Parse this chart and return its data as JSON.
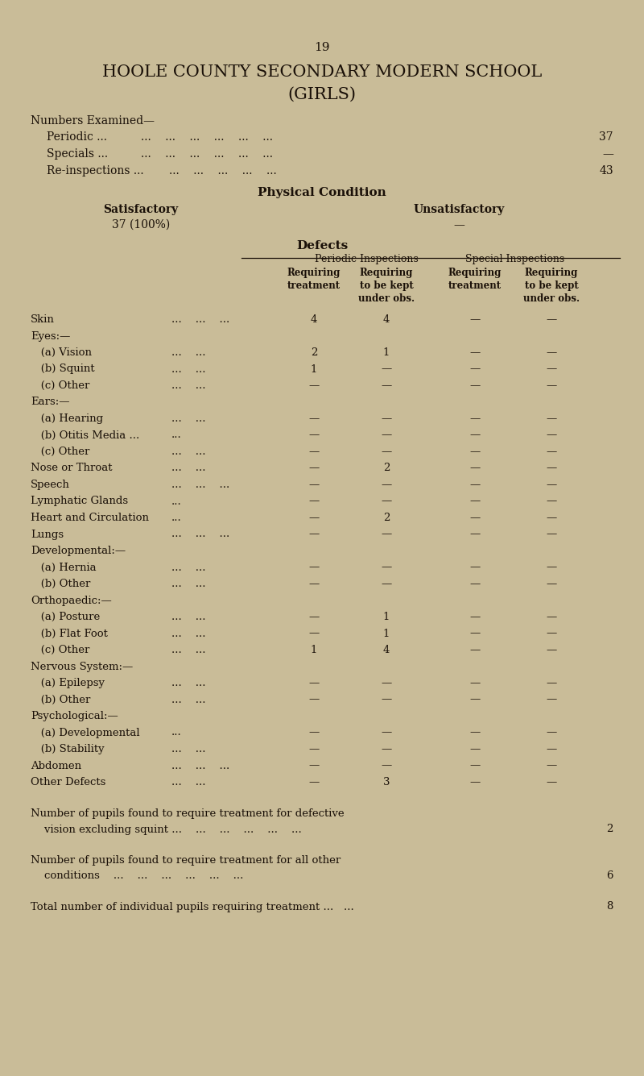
{
  "bg_color": "#c9bc98",
  "text_color": "#1a1008",
  "page_number": "19",
  "title_line1": "HOOLE COUNTY SECONDARY MODERN SCHOOL",
  "title_line2": "(GIRLS)",
  "numbers_examined_label": "Numbers Examined—",
  "periodic_label": "Periodic ...",
  "periodic_dots": "...    ...    ...    ...    ...    ...",
  "periodic_value": "37",
  "specials_label": "Specials ...",
  "specials_dots": "...    ...    ...    ...    ...    ...",
  "specials_value": "—",
  "reinspections_label": "Re-inspections ...",
  "reinspections_dots": "...    ...    ...    ...    ...",
  "reinspections_value": "43",
  "phys_cond_label": "Physical Condition",
  "satisfactory_label": "Satisfactory",
  "unsatisfactory_label": "Unsatisfactory",
  "satisfactory_value": "37 (100%)",
  "unsatisfactory_value": "—",
  "defects_label": "Defects",
  "periodic_insp_label": "Periodic Inspections",
  "special_insp_label": "Special Inspections",
  "col1_label": "Requiring\ntreatment",
  "col2_label": "Requiring\nto be kept\nunder obs.",
  "col3_label": "Requiring\ntreatment",
  "col4_label": "Requiring\nto be kept\nunder obs.",
  "rows": [
    {
      "label": "Skin",
      "trail": "...    ...    ...",
      "c1": "4",
      "c2": "4",
      "c3": "—",
      "c4": "—",
      "indent": 0,
      "header": false
    },
    {
      "label": "Eyes:—",
      "trail": "",
      "c1": "",
      "c2": "",
      "c3": "",
      "c4": "",
      "indent": 0,
      "header": true
    },
    {
      "label": "   (a) Vision",
      "trail": "...    ...",
      "c1": "2",
      "c2": "1",
      "c3": "—",
      "c4": "—",
      "indent": 1,
      "header": false
    },
    {
      "label": "   (b) Squint",
      "trail": "...    ...",
      "c1": "1",
      "c2": "—",
      "c3": "—",
      "c4": "—",
      "indent": 1,
      "header": false
    },
    {
      "label": "   (c) Other",
      "trail": "...    ...",
      "c1": "—",
      "c2": "—",
      "c3": "—",
      "c4": "—",
      "indent": 1,
      "header": false
    },
    {
      "label": "Ears:—",
      "trail": "",
      "c1": "",
      "c2": "",
      "c3": "",
      "c4": "",
      "indent": 0,
      "header": true
    },
    {
      "label": "   (a) Hearing",
      "trail": "...    ...",
      "c1": "—",
      "c2": "—",
      "c3": "—",
      "c4": "—",
      "indent": 1,
      "header": false
    },
    {
      "label": "   (b) Otitis Media ...",
      "trail": "...",
      "c1": "—",
      "c2": "—",
      "c3": "—",
      "c4": "—",
      "indent": 1,
      "header": false
    },
    {
      "label": "   (c) Other",
      "trail": "...    ...",
      "c1": "—",
      "c2": "—",
      "c3": "—",
      "c4": "—",
      "indent": 1,
      "header": false
    },
    {
      "label": "Nose or Throat",
      "trail": "...    ...",
      "c1": "—",
      "c2": "2",
      "c3": "—",
      "c4": "—",
      "indent": 0,
      "header": false
    },
    {
      "label": "Speech",
      "trail": "...    ...    ...",
      "c1": "—",
      "c2": "—",
      "c3": "—",
      "c4": "—",
      "indent": 0,
      "header": false
    },
    {
      "label": "Lymphatic Glands",
      "trail": "...",
      "c1": "—",
      "c2": "—",
      "c3": "—",
      "c4": "—",
      "indent": 0,
      "header": false
    },
    {
      "label": "Heart and Circulation",
      "trail": "...",
      "c1": "—",
      "c2": "2",
      "c3": "—",
      "c4": "—",
      "indent": 0,
      "header": false
    },
    {
      "label": "Lungs",
      "trail": "...    ...    ...",
      "c1": "—",
      "c2": "—",
      "c3": "—",
      "c4": "—",
      "indent": 0,
      "header": false
    },
    {
      "label": "Developmental:—",
      "trail": "",
      "c1": "",
      "c2": "",
      "c3": "",
      "c4": "",
      "indent": 0,
      "header": true
    },
    {
      "label": "   (a) Hernia",
      "trail": "...    ...",
      "c1": "—",
      "c2": "—",
      "c3": "—",
      "c4": "—",
      "indent": 1,
      "header": false
    },
    {
      "label": "   (b) Other",
      "trail": "...    ...",
      "c1": "—",
      "c2": "—",
      "c3": "—",
      "c4": "—",
      "indent": 1,
      "header": false
    },
    {
      "label": "Orthopaedic:—",
      "trail": "",
      "c1": "",
      "c2": "",
      "c3": "",
      "c4": "",
      "indent": 0,
      "header": true
    },
    {
      "label": "   (a) Posture",
      "trail": "...    ...",
      "c1": "—",
      "c2": "1",
      "c3": "—",
      "c4": "—",
      "indent": 1,
      "header": false
    },
    {
      "label": "   (b) Flat Foot",
      "trail": "...    ...",
      "c1": "—",
      "c2": "1",
      "c3": "—",
      "c4": "—",
      "indent": 1,
      "header": false
    },
    {
      "label": "   (c) Other",
      "trail": "...    ...",
      "c1": "1",
      "c2": "4",
      "c3": "—",
      "c4": "—",
      "indent": 1,
      "header": false
    },
    {
      "label": "Nervous System:—",
      "trail": "",
      "c1": "",
      "c2": "",
      "c3": "",
      "c4": "",
      "indent": 0,
      "header": true
    },
    {
      "label": "   (a) Epilepsy",
      "trail": "...    ...",
      "c1": "—",
      "c2": "—",
      "c3": "—",
      "c4": "—",
      "indent": 1,
      "header": false
    },
    {
      "label": "   (b) Other",
      "trail": "...    ...",
      "c1": "—",
      "c2": "—",
      "c3": "—",
      "c4": "—",
      "indent": 1,
      "header": false
    },
    {
      "label": "Psychological:—",
      "trail": "",
      "c1": "",
      "c2": "",
      "c3": "",
      "c4": "",
      "indent": 0,
      "header": true
    },
    {
      "label": "   (a) Developmental",
      "trail": "...",
      "c1": "—",
      "c2": "—",
      "c3": "—",
      "c4": "—",
      "indent": 1,
      "header": false
    },
    {
      "label": "   (b) Stability",
      "trail": "...    ...",
      "c1": "—",
      "c2": "—",
      "c3": "—",
      "c4": "—",
      "indent": 1,
      "header": false
    },
    {
      "label": "Abdomen",
      "trail": "...    ...    ...",
      "c1": "—",
      "c2": "—",
      "c3": "—",
      "c4": "—",
      "indent": 0,
      "header": false
    },
    {
      "label": "Other Defects",
      "trail": "...    ...",
      "c1": "—",
      "c2": "3",
      "c3": "—",
      "c4": "—",
      "indent": 0,
      "header": false
    }
  ],
  "footnote1_line1": "Number of pupils found to require treatment for defective",
  "footnote1_line2": "    vision excluding squint ...",
  "footnote1_dots": "  ...    ...    ...    ...    ...",
  "footnote1_value": "2",
  "footnote2_line1": "Number of pupils found to require treatment for all other",
  "footnote2_line2": "    conditions",
  "footnote2_dots": "  ...    ...    ...    ...    ...    ...",
  "footnote2_value": "6",
  "footnote3": "Total number of individual pupils requiring treatment ...",
  "footnote3_dots": "   ...",
  "footnote3_value": "8"
}
